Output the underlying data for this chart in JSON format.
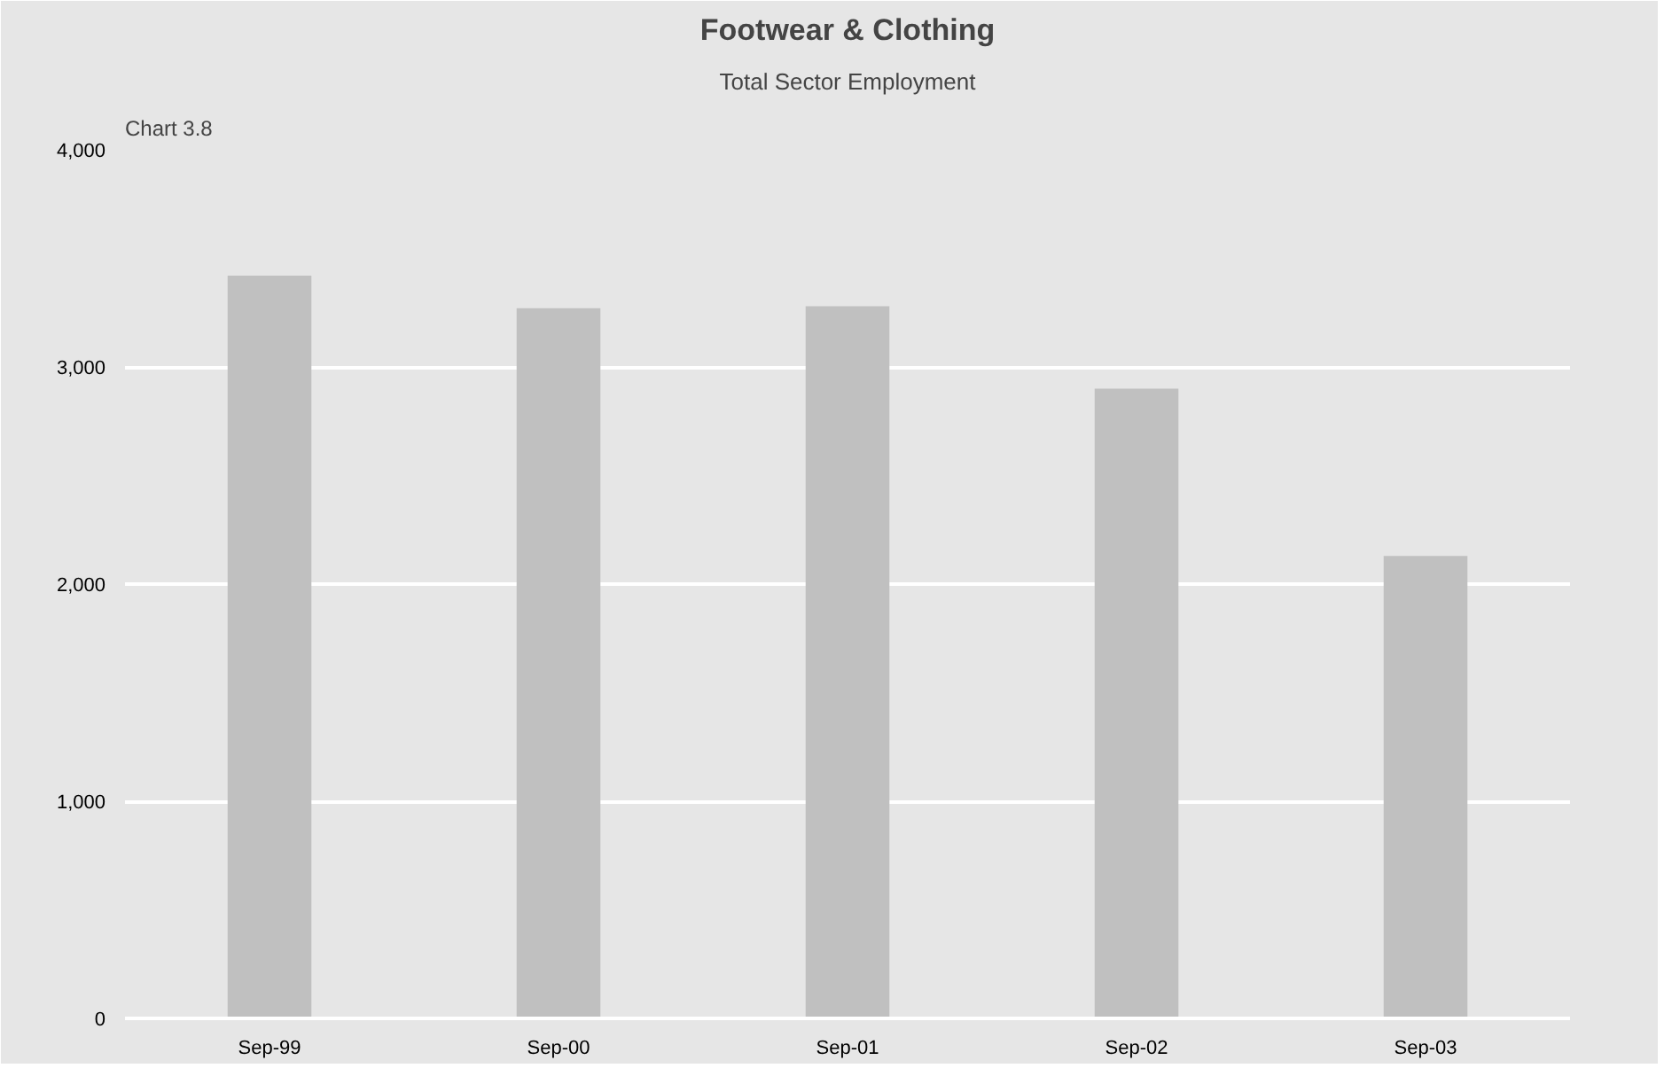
{
  "chart_data": {
    "type": "bar",
    "title": "Footwear & Clothing",
    "subtitle": "Total Sector Employment",
    "annotations": [
      "Chart 3.8"
    ],
    "categories": [
      "Sep-99",
      "Sep-00",
      "Sep-01",
      "Sep-02",
      "Sep-03"
    ],
    "values": [
      3420,
      3270,
      3280,
      2900,
      2130
    ],
    "color": "#c0c0c0",
    "ylim": [
      0,
      4000
    ],
    "yticks": [
      {
        "value": 0,
        "label": "0"
      },
      {
        "value": 1000,
        "label": "1,000"
      },
      {
        "value": 2000,
        "label": "2,000"
      },
      {
        "value": 3000,
        "label": "3,000"
      },
      {
        "value": 4000,
        "label": "4,000"
      }
    ],
    "grid": "y"
  }
}
